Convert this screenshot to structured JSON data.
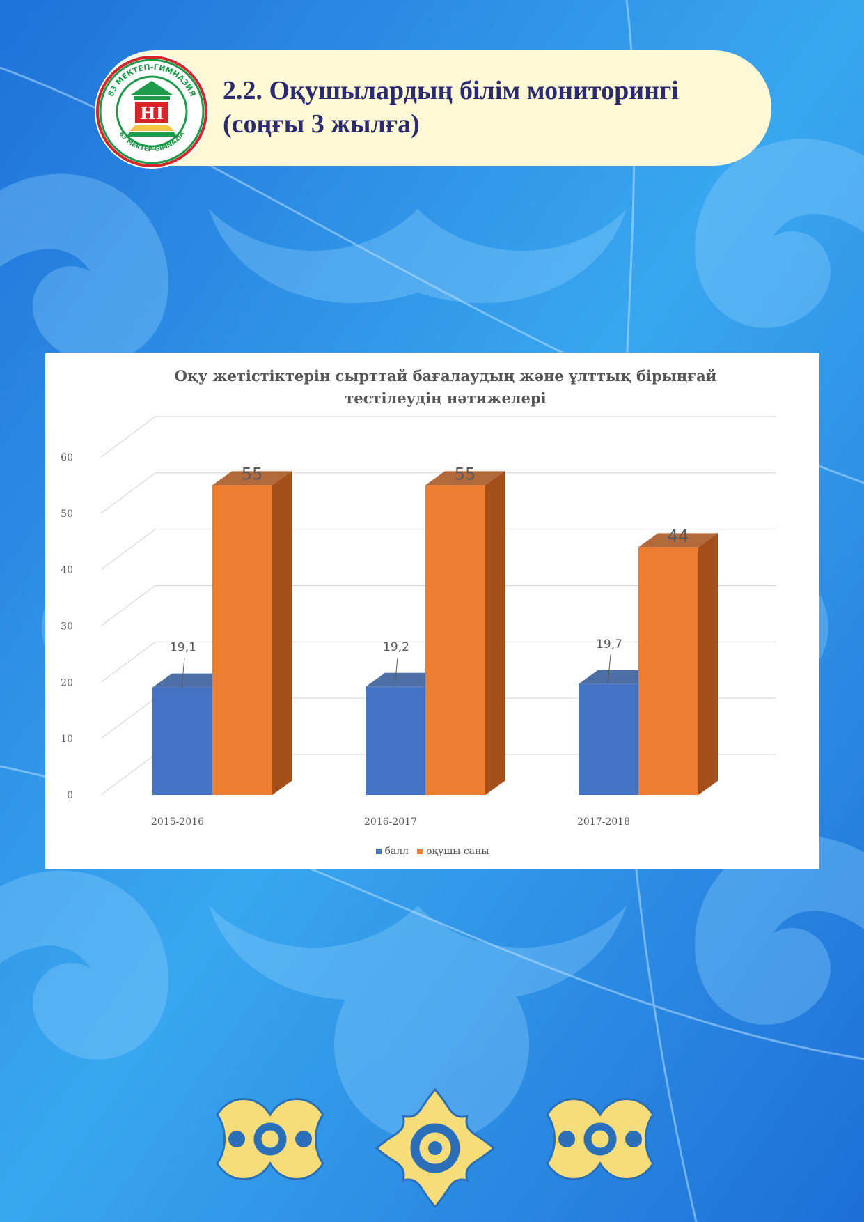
{
  "header": {
    "title": "2.2. Оқушылардың білім мониторингі (соңғы 3 жылға)"
  },
  "logo": {
    "top_text": "83 МЕКТЕП-ГИМНАЗИЯ",
    "bottom_text": "83 MEKTEP-GIMNAZIA",
    "letters": "НІ"
  },
  "colors": {
    "background": "#2a8ee6",
    "header_bg": "#fff8d6",
    "title_color": "#2a2a6e",
    "series_blue": "#4472c4",
    "series_orange": "#ed7d31",
    "ornament_gold": "#f7dc7a"
  },
  "chart_data": {
    "type": "bar",
    "title": "Оқу жетістіктерін сырттай бағалаудың және ұлттық бірыңғай тестілеудің нәтижелері",
    "categories": [
      "2015-2016",
      "2016-2017",
      "2017-2018"
    ],
    "series": [
      {
        "name": "балл",
        "values": [
          19.1,
          19.2,
          19.7
        ],
        "labels": [
          "19,1",
          "19,2",
          "19,7"
        ],
        "color": "#4472c4"
      },
      {
        "name": "оқушы саны",
        "values": [
          55,
          55,
          44
        ],
        "labels": [
          "55",
          "55",
          "44"
        ],
        "color": "#ed7d31"
      }
    ],
    "yticks": [
      "0",
      "10",
      "20",
      "30",
      "40",
      "50",
      "60"
    ],
    "ylim": [
      0,
      60
    ],
    "grid": true,
    "legend": "bottom",
    "style": "3d"
  }
}
